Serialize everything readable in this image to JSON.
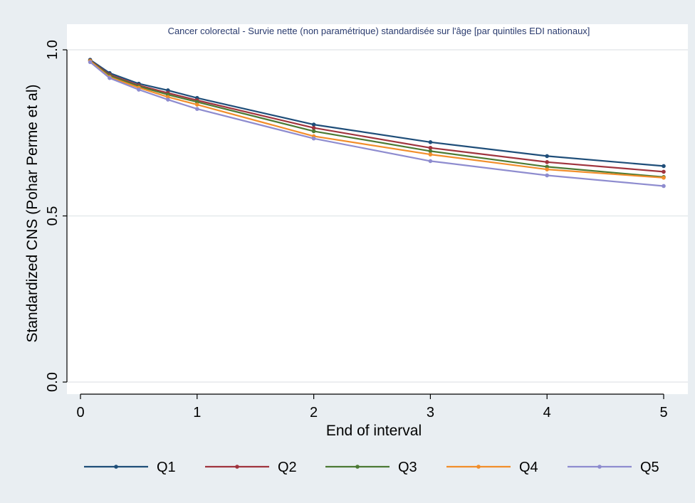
{
  "colors": {
    "outer_background": "#e9eef2",
    "plot_background": "#ffffff",
    "gridline": "#e6e9ec",
    "axis": "#000000"
  },
  "chart_data": {
    "type": "line",
    "title": "Cancer colorectal - Survie nette (non paramétrique) standardisée sur l'âge [par quintiles EDI nationaux]",
    "xlabel": "End of interval",
    "ylabel": "Standardized CNS (Pohar Perme et al)",
    "xlim": [
      0,
      5
    ],
    "ylim": [
      0.0,
      1.0
    ],
    "x_ticks": [
      0,
      1,
      2,
      3,
      4,
      5
    ],
    "x_tick_labels": [
      "0",
      "1",
      "2",
      "3",
      "4",
      "5"
    ],
    "y_ticks": [
      0.0,
      0.5,
      1.0
    ],
    "y_tick_labels": [
      "0.0",
      "0.5",
      "1.0"
    ],
    "grid": "horizontal",
    "legend_position": "bottom",
    "x": [
      0.083,
      0.25,
      0.5,
      0.75,
      1,
      2,
      3,
      4,
      5
    ],
    "series": [
      {
        "name": "Q1",
        "color": "#1f4e79",
        "values": [
          0.97,
          0.93,
          0.898,
          0.878,
          0.855,
          0.775,
          0.722,
          0.68,
          0.65
        ]
      },
      {
        "name": "Q2",
        "color": "#a0343e",
        "values": [
          0.968,
          0.925,
          0.893,
          0.87,
          0.848,
          0.765,
          0.705,
          0.662,
          0.633
        ]
      },
      {
        "name": "Q3",
        "color": "#4c7a34",
        "values": [
          0.967,
          0.922,
          0.89,
          0.865,
          0.843,
          0.755,
          0.695,
          0.648,
          0.617
        ]
      },
      {
        "name": "Q4",
        "color": "#f28e2b",
        "values": [
          0.966,
          0.918,
          0.886,
          0.858,
          0.835,
          0.74,
          0.685,
          0.64,
          0.615
        ]
      },
      {
        "name": "Q5",
        "color": "#8e8ccf",
        "values": [
          0.963,
          0.915,
          0.88,
          0.85,
          0.822,
          0.733,
          0.665,
          0.622,
          0.59
        ]
      }
    ]
  }
}
